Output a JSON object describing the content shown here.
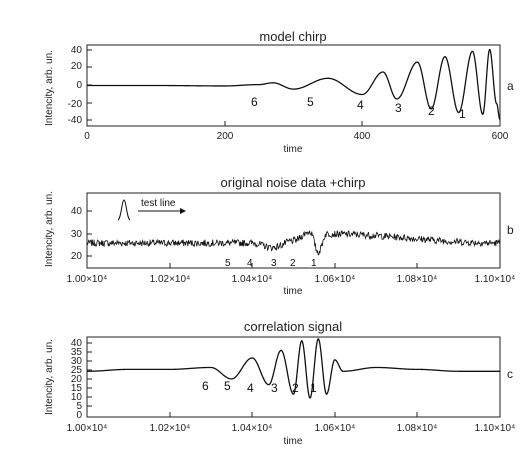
{
  "figure": {
    "panels": [
      {
        "title": "model chirp",
        "ylabel": "Intencity, arb. un.",
        "xlabel": "time",
        "xticks": [
          "0",
          "200",
          "400",
          "600"
        ],
        "yticks": [
          "40",
          "20",
          "0",
          "-20",
          "-40"
        ],
        "panel_label": "a",
        "peak_labels": [
          "6",
          "5",
          "4",
          "3",
          "2",
          "1"
        ]
      },
      {
        "title": "original noise data +chirp",
        "ylabel": "Intencity, arb. un.",
        "xlabel": "time",
        "xticks": [
          "1.00×10⁴",
          "1.02×10⁴",
          "1.04×10⁴",
          "1.06×10⁴",
          "1.08×10⁴",
          "1.10×10⁴"
        ],
        "yticks": [
          "40",
          "30",
          "20"
        ],
        "panel_label": "b",
        "peak_labels": [
          "5",
          "4",
          "3",
          "2",
          "1"
        ],
        "inset_label": "test line"
      },
      {
        "title": "correlation signal",
        "ylabel": "Intencity, arb. un.",
        "xlabel": "time",
        "xticks": [
          "1.00×10⁴",
          "1.02×10⁴",
          "1.04×10⁴",
          "1.06×10⁴",
          "1.08×10⁴",
          "1.10×10⁴"
        ],
        "yticks": [
          "40",
          "35",
          "30",
          "25",
          "20",
          "15",
          "10",
          "5",
          "0"
        ],
        "panel_label": "c",
        "peak_labels": [
          "6",
          "5",
          "4",
          "3",
          "2",
          "1"
        ]
      }
    ]
  },
  "chart_data": [
    {
      "type": "line",
      "title": "model chirp",
      "xlabel": "time",
      "ylabel": "Intencity, arb. un.",
      "xlim": [
        0,
        600
      ],
      "ylim": [
        -45,
        45
      ],
      "x": [
        0,
        100,
        200,
        250,
        270,
        300,
        350,
        400,
        430,
        450,
        480,
        500,
        520,
        540,
        560,
        575,
        585,
        595,
        600
      ],
      "y": [
        0,
        0,
        -0.5,
        1,
        3,
        -4,
        8,
        -10,
        15,
        -15,
        26,
        -26,
        32,
        -30,
        38,
        -32,
        40,
        -20,
        -38
      ],
      "annotations": [
        {
          "text": "6",
          "x": 262
        },
        {
          "text": "5",
          "x": 340
        },
        {
          "text": "4",
          "x": 400
        },
        {
          "text": "3",
          "x": 460
        },
        {
          "text": "2",
          "x": 520
        },
        {
          "text": "1",
          "x": 570
        }
      ]
    },
    {
      "type": "line",
      "title": "original noise data +chirp",
      "xlabel": "time",
      "ylabel": "Intencity, arb. un.",
      "xlim": [
        10000,
        11000
      ],
      "ylim": [
        15,
        48
      ],
      "baseline": 26,
      "noise_amplitude": 1.5,
      "x": [
        10000,
        10400,
        10450,
        10500,
        10540,
        10560,
        10580,
        11000
      ],
      "y": [
        26,
        26,
        24,
        27,
        31,
        22,
        30,
        26
      ],
      "annotations": [
        {
          "text": "5",
          "x": 10260
        },
        {
          "text": "4",
          "x": 10330
        },
        {
          "text": "3",
          "x": 10390
        },
        {
          "text": "2",
          "x": 10460
        },
        {
          "text": "1",
          "x": 10530
        }
      ]
    },
    {
      "type": "line",
      "title": "correlation signal",
      "xlabel": "time",
      "ylabel": "Intencity, arb. un.",
      "xlim": [
        10000,
        11000
      ],
      "ylim": [
        0,
        42
      ],
      "x": [
        10000,
        10100,
        10200,
        10300,
        10350,
        10400,
        10440,
        10470,
        10500,
        10520,
        10540,
        10560,
        10580,
        10600,
        10620,
        10700,
        10800,
        10900,
        11000
      ],
      "y": [
        24,
        25,
        25,
        26,
        20,
        31,
        17,
        35,
        12,
        40,
        10,
        41,
        12,
        30,
        24,
        26,
        25,
        24,
        24
      ],
      "annotations": [
        {
          "text": "6",
          "x": 10200
        },
        {
          "text": "5",
          "x": 10280
        },
        {
          "text": "4",
          "x": 10360
        },
        {
          "text": "3",
          "x": 10440
        },
        {
          "text": "2",
          "x": 10510
        },
        {
          "text": "1",
          "x": 10560
        }
      ]
    }
  ]
}
